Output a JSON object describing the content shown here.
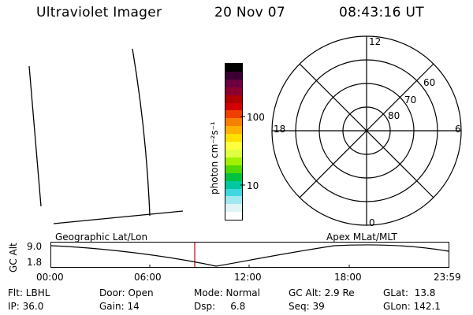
{
  "header": {
    "title": "Ultraviolet Imager",
    "date": "20 Nov 07",
    "time": "08:43:16 UT"
  },
  "colorbar": {
    "label": "photon cm⁻²s⁻¹",
    "ticks": [
      "100",
      "10"
    ],
    "colors": [
      "#000000",
      "#3a0033",
      "#6a0040",
      "#8c0030",
      "#b00000",
      "#d40000",
      "#f04000",
      "#f88000",
      "#ffb000",
      "#ffe000",
      "#ffff40",
      "#e0ff40",
      "#a0f000",
      "#50d800",
      "#00c040",
      "#00c8a0",
      "#40d8e0",
      "#a0e8f0",
      "#e0f4f8",
      "#ffffff"
    ]
  },
  "polar": {
    "mlt_labels": {
      "top": "12",
      "left": "18",
      "right": "6",
      "bottom": "0"
    },
    "lat_labels": [
      "60",
      "70",
      "80"
    ]
  },
  "grid_labels": {
    "left": "Geographic Lat/Lon",
    "right": "Apex MLat/MLT"
  },
  "altitude_plot": {
    "ylabel": "GC Alt",
    "y_ticks": [
      "9.0",
      "1.8"
    ],
    "x_ticks": [
      "00:00",
      "06:00",
      "12:00",
      "18:00",
      "23:59"
    ],
    "marker_color": "#cc0000"
  },
  "info": {
    "row1": [
      "Flt: LBHL",
      "Door: Open",
      "Mode: Normal",
      "GC Alt: 2.9 Re",
      "GLat:  13.8"
    ],
    "row2": [
      "IP: 36.0",
      "Gain: 14",
      "Dsp:     6.8",
      "Seq: 39",
      "GLon: 142.1"
    ]
  }
}
